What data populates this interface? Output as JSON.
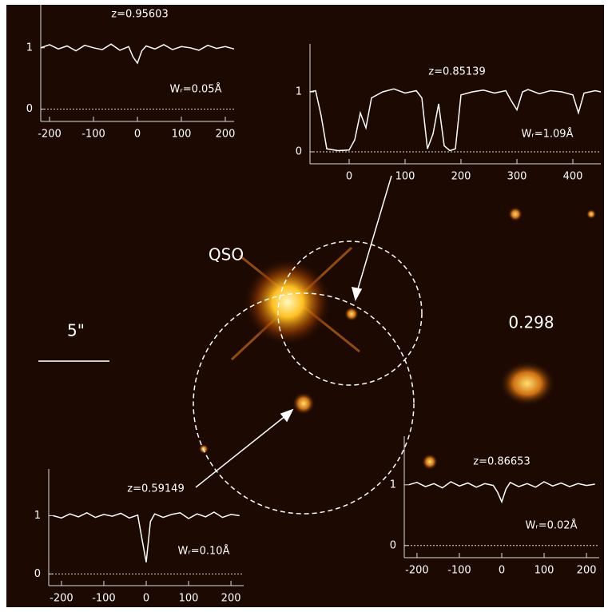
{
  "image": {
    "qso_label": "QSO",
    "galaxy_label": "0.298",
    "scale_label": "5\""
  },
  "chart_data": [
    {
      "type": "line",
      "title": "z=0.95603",
      "annotation": "Wᵣ=0.05Å",
      "color": "#ffffff",
      "x": [
        -220,
        -200,
        -180,
        -160,
        -140,
        -120,
        -100,
        -80,
        -60,
        -40,
        -20,
        -10,
        0,
        10,
        20,
        40,
        60,
        80,
        100,
        120,
        140,
        160,
        180,
        200,
        220
      ],
      "values": [
        1.0,
        1.05,
        0.98,
        1.03,
        0.95,
        1.04,
        1.0,
        0.97,
        1.06,
        0.96,
        1.02,
        0.85,
        0.75,
        0.95,
        1.03,
        0.98,
        1.05,
        0.97,
        1.02,
        1.0,
        0.96,
        1.04,
        0.99,
        1.02,
        0.98
      ],
      "xlim": [
        -220,
        220
      ],
      "ylim": [
        -0.2,
        1.7
      ],
      "xticks": [
        -200,
        -100,
        0,
        100,
        200
      ],
      "yticks": [
        0,
        1
      ]
    },
    {
      "type": "line",
      "title": "z=0.85139",
      "annotation": "Wᵣ=1.09Å",
      "color": "#ffffff",
      "x": [
        -70,
        -60,
        -50,
        -40,
        -20,
        0,
        10,
        20,
        30,
        40,
        60,
        80,
        100,
        120,
        130,
        140,
        150,
        160,
        170,
        180,
        190,
        200,
        220,
        240,
        260,
        280,
        290,
        300,
        310,
        320,
        340,
        360,
        380,
        400,
        410,
        420,
        440,
        450
      ],
      "values": [
        1.0,
        1.02,
        0.6,
        0.05,
        0.02,
        0.03,
        0.2,
        0.65,
        0.4,
        0.9,
        1.0,
        1.05,
        0.98,
        1.02,
        0.9,
        0.05,
        0.3,
        0.8,
        0.1,
        0.02,
        0.05,
        0.95,
        1.0,
        1.03,
        0.98,
        1.02,
        0.85,
        0.7,
        1.0,
        1.04,
        0.97,
        1.02,
        1.0,
        0.95,
        0.65,
        0.98,
        1.02,
        1.0
      ],
      "xlim": [
        -70,
        450
      ],
      "ylim": [
        -0.2,
        1.8
      ],
      "xticks": [
        0,
        100,
        200,
        300,
        400
      ],
      "yticks": [
        0,
        1
      ]
    },
    {
      "type": "line",
      "title": "z=0.59149",
      "annotation": "Wᵣ=0.10Å",
      "color": "#ffffff",
      "x": [
        -220,
        -200,
        -180,
        -160,
        -140,
        -120,
        -100,
        -80,
        -60,
        -40,
        -20,
        -10,
        0,
        10,
        20,
        40,
        60,
        80,
        100,
        120,
        140,
        160,
        180,
        200,
        220
      ],
      "values": [
        1.0,
        0.96,
        1.03,
        0.98,
        1.05,
        0.97,
        1.02,
        0.99,
        1.04,
        0.96,
        1.01,
        0.6,
        0.2,
        0.9,
        1.03,
        0.97,
        1.02,
        1.05,
        0.95,
        1.03,
        0.98,
        1.06,
        0.97,
        1.02,
        1.0
      ],
      "xlim": [
        -230,
        230
      ],
      "ylim": [
        -0.2,
        1.8
      ],
      "xticks": [
        -200,
        -100,
        0,
        100,
        200
      ],
      "yticks": [
        0,
        1
      ]
    },
    {
      "type": "line",
      "title": "z=0.86653",
      "annotation": "Wᵣ=0.02Å",
      "color": "#ffffff",
      "x": [
        -220,
        -200,
        -180,
        -160,
        -140,
        -120,
        -100,
        -80,
        -60,
        -40,
        -20,
        -10,
        0,
        10,
        20,
        40,
        60,
        80,
        100,
        120,
        140,
        160,
        180,
        200,
        220
      ],
      "values": [
        1.0,
        1.04,
        0.97,
        1.02,
        0.95,
        1.05,
        0.98,
        1.03,
        0.96,
        1.02,
        0.99,
        0.88,
        0.72,
        0.93,
        1.04,
        0.97,
        1.02,
        0.96,
        1.05,
        0.98,
        1.03,
        0.97,
        1.02,
        0.99,
        1.01
      ],
      "xlim": [
        -230,
        230
      ],
      "ylim": [
        -0.2,
        1.8
      ],
      "xticks": [
        -200,
        -100,
        0,
        100,
        200
      ],
      "yticks": [
        0,
        1
      ]
    }
  ]
}
